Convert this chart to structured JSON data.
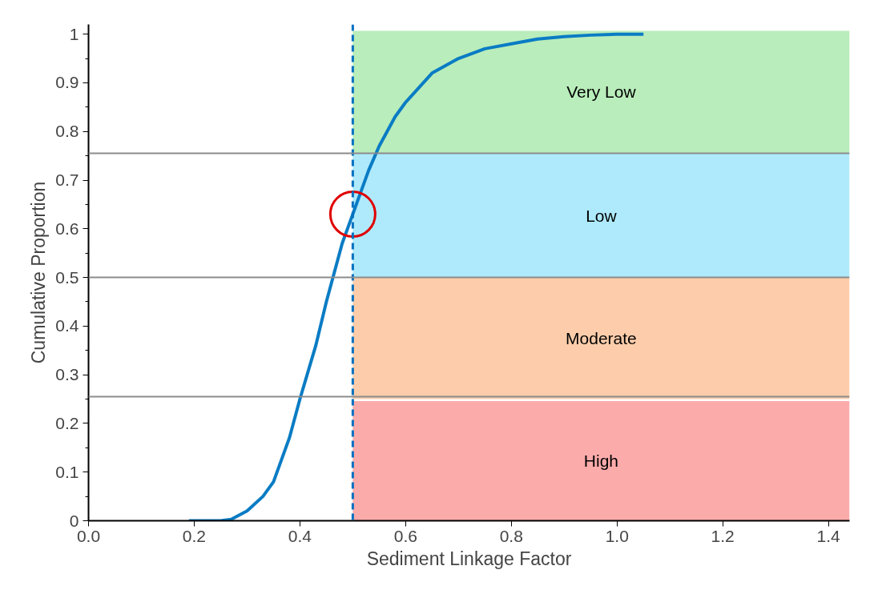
{
  "chart_data": {
    "type": "line",
    "xlabel": "Sediment Linkage Factor",
    "ylabel": "Cumulative Proportion",
    "x": [
      0.19,
      0.25,
      0.27,
      0.3,
      0.33,
      0.35,
      0.38,
      0.4,
      0.43,
      0.45,
      0.48,
      0.5,
      0.53,
      0.55,
      0.58,
      0.6,
      0.65,
      0.7,
      0.75,
      0.8,
      0.85,
      0.9,
      0.95,
      1.0,
      1.05
    ],
    "series": [
      {
        "color": "#0a7cc4",
        "values": [
          0,
          0,
          0.003,
          0.02,
          0.05,
          0.08,
          0.17,
          0.25,
          0.36,
          0.45,
          0.57,
          0.63,
          0.72,
          0.77,
          0.83,
          0.86,
          0.92,
          0.95,
          0.97,
          0.98,
          0.99,
          0.995,
          0.998,
          1.0,
          1.0
        ]
      }
    ],
    "xlim": [
      0,
      1.44
    ],
    "ylim": [
      0,
      1.02
    ],
    "xticks": [
      {
        "value": 0,
        "label": "0.0"
      },
      {
        "value": 0.2,
        "label": "0.2"
      },
      {
        "value": 0.4,
        "label": "0.4"
      },
      {
        "value": 0.6,
        "label": "0.6"
      },
      {
        "value": 0.8,
        "label": "0.8"
      },
      {
        "value": 1.0,
        "label": "1.0"
      },
      {
        "value": 1.2,
        "label": "1.2"
      },
      {
        "value": 1.4,
        "label": "1.4"
      }
    ],
    "yticks": [
      0,
      0.1,
      0.2,
      0.3,
      0.4,
      0.5,
      0.6,
      0.7,
      0.8,
      0.9,
      1
    ],
    "ref_lines": [
      {
        "axis": "x",
        "value": 0.5,
        "color": "#0070c0",
        "line_style": "dashed"
      },
      {
        "axis": "y",
        "value": 0.755,
        "color": "#8c8c8c"
      },
      {
        "axis": "y",
        "value": 0.5,
        "color": "#8c8c8c"
      },
      {
        "axis": "y",
        "value": 0.255,
        "color": "#8c8c8c"
      }
    ],
    "bands": [
      {
        "axis": "y",
        "from": 0.755,
        "to": 1.007,
        "label": "Very Low",
        "color": "#b9edbb"
      },
      {
        "axis": "y",
        "from": 0.5,
        "to": 0.755,
        "label": "Low",
        "color": "#aeeafc"
      },
      {
        "axis": "y",
        "from": 0.25,
        "to": 0.5,
        "label": "Moderate",
        "color": "#fdcdab"
      },
      {
        "axis": "y",
        "from": 0,
        "to": 0.246,
        "label": "High",
        "color": "#fcabab"
      }
    ],
    "grid": false,
    "marker": "none",
    "line_style": "solid"
  }
}
